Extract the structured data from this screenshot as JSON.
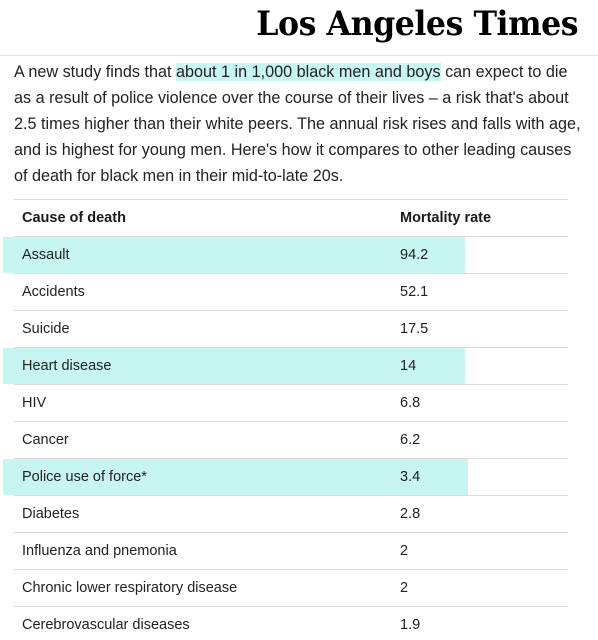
{
  "header": {
    "logo_text": "Los Angeles Times"
  },
  "intro": {
    "before": "A new study finds that ",
    "highlight": "about 1 in 1,000 black men and boys",
    "after": " can expect to die as a result of police violence over the course of their lives – a risk that's about 2.5 times higher than their white peers. The annual risk rises and falls with age, and is highest for young men. Here's how it compares to other leading causes of death for black men in their mid-to-late 20s."
  },
  "table": {
    "headers": [
      "Cause of death",
      "Mortality rate"
    ],
    "rows": [
      {
        "cause": "Assault",
        "rate": "94.2",
        "highlighted": true
      },
      {
        "cause": "Accidents",
        "rate": "52.1",
        "highlighted": false
      },
      {
        "cause": "Suicide",
        "rate": "17.5",
        "highlighted": false
      },
      {
        "cause": "Heart disease",
        "rate": "14",
        "highlighted": true
      },
      {
        "cause": "HIV",
        "rate": "6.8",
        "highlighted": false
      },
      {
        "cause": "Cancer",
        "rate": "6.2",
        "highlighted": false
      },
      {
        "cause": "Police use of force*",
        "rate": "3.4",
        "highlighted": true
      },
      {
        "cause": "Diabetes",
        "rate": "2.8",
        "highlighted": false
      },
      {
        "cause": "Influenza and pnemonia",
        "rate": "2",
        "highlighted": false
      },
      {
        "cause": "Chronic lower respiratory disease",
        "rate": "2",
        "highlighted": false
      },
      {
        "cause": "Cerebrovascular diseases",
        "rate": "1.9",
        "highlighted": false
      }
    ]
  },
  "colors": {
    "highlight": "#c6f5f2",
    "rule": "#dcdcdc"
  }
}
